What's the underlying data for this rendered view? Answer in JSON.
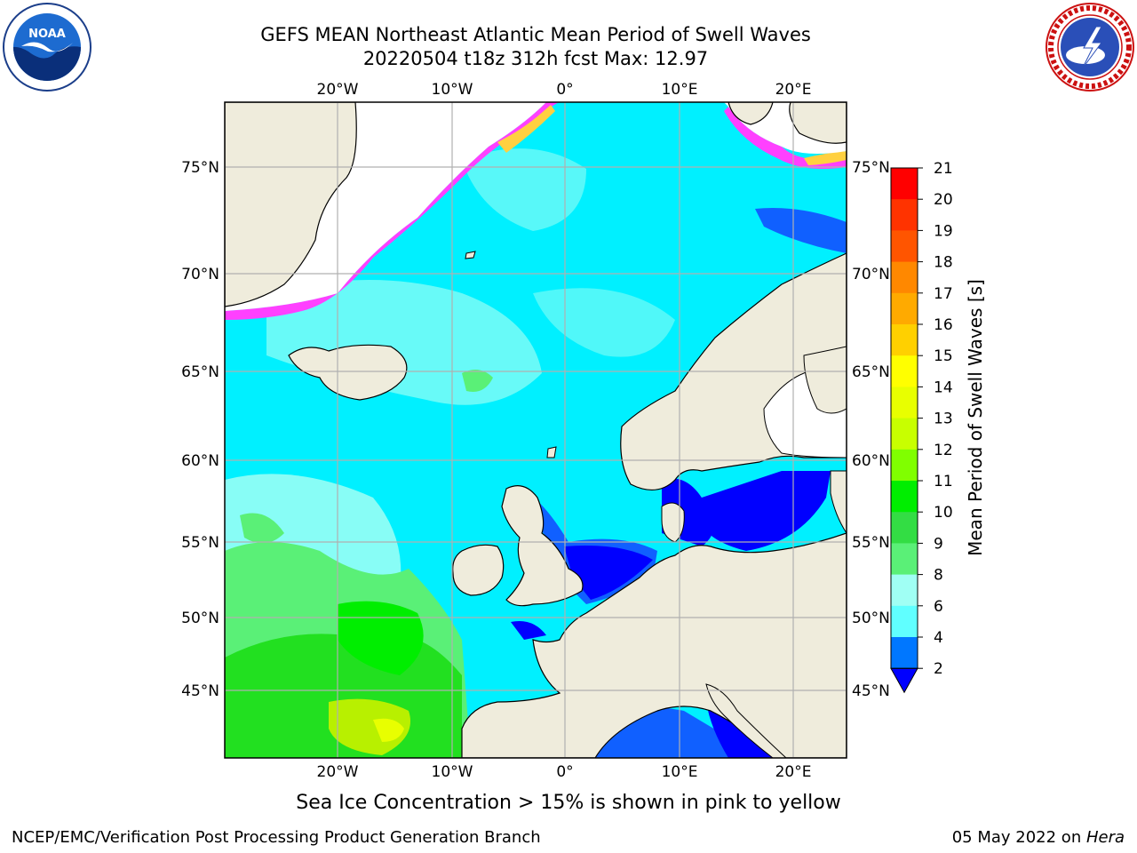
{
  "header": {
    "title_line1": "GEFS MEAN Northeast Atlantic Mean Period of Swell Waves",
    "title_line2": "20220504 t18z 312h fcst   Max: 12.97"
  },
  "logos": {
    "left": "noaa-logo",
    "left_text": "NOAA",
    "right": "nws-logo"
  },
  "map": {
    "lon_ticks_top": [
      "20°W",
      "10°W",
      "0°",
      "10°E",
      "20°E"
    ],
    "lon_ticks_bottom": [
      "20°W",
      "10°W",
      "0°",
      "10°E",
      "20°E"
    ],
    "lat_ticks_left": [
      "75°N",
      "70°N",
      "65°N",
      "60°N",
      "55°N",
      "50°N",
      "45°N"
    ],
    "lat_ticks_right": [
      "75°N",
      "70°N",
      "65°N",
      "60°N",
      "55°N",
      "50°N",
      "45°N"
    ],
    "colors": {
      "land": "#efecdc",
      "ocean_cyan": "#00f0ff",
      "ocean_light": "#a0fff4",
      "ocean_green": "#5af077",
      "ocean_deep_blue": "#0000ff",
      "ice_pink": "#ff40ff",
      "ice_yellow": "#ffe040"
    }
  },
  "colorbar": {
    "label": "Mean Period of Swell Waves [s]",
    "ticks": [
      "21",
      "20",
      "19",
      "18",
      "17",
      "16",
      "15",
      "14",
      "13",
      "12",
      "11",
      "10",
      "9",
      "8",
      "6",
      "4",
      "2"
    ],
    "colors": [
      "#ff0000",
      "#ff3300",
      "#ff5500",
      "#ff8800",
      "#ffaa00",
      "#ffd000",
      "#ffff00",
      "#e8ff00",
      "#c8ff00",
      "#80ff00",
      "#00ee00",
      "#33dd44",
      "#5af077",
      "#a0fff4",
      "#60ffff",
      "#00eeff",
      "#0077ff"
    ],
    "extend_color": "#0000ff"
  },
  "footer": {
    "ice_note": "Sea Ice Concentration > 15% is shown in pink to yellow",
    "credit": "NCEP/EMC/Verification Post Processing Product Generation Branch",
    "date": "05 May 2022 on ",
    "machine": "Hera"
  }
}
